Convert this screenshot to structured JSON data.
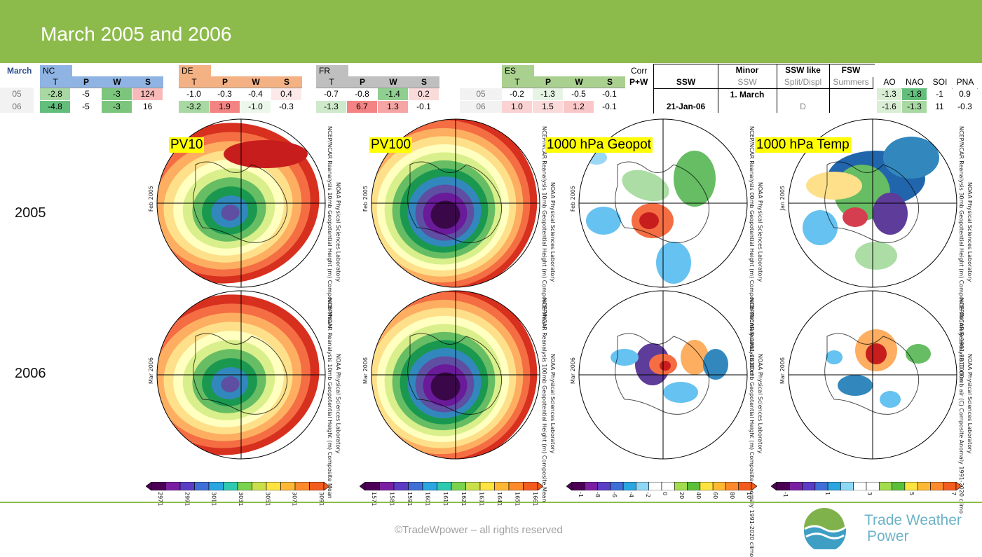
{
  "header": {
    "title": "March 2005 and 2006"
  },
  "tables": {
    "month_label": "March",
    "groups": [
      {
        "name": "NC",
        "head_color": "#8fb4e3",
        "sub": [
          "T",
          "P",
          "W",
          "S"
        ],
        "rows": [
          [
            "-2.8",
            "-5",
            "-3",
            "124"
          ],
          [
            "-4.8",
            "-5",
            "-3",
            "16"
          ]
        ],
        "colors": [
          [
            "#a9d9a3",
            "#ffffff",
            "#7cc57c",
            "#f8b9b9"
          ],
          [
            "#63be7b",
            "#ffffff",
            "#7cc57c",
            "#ffffff"
          ]
        ]
      },
      {
        "name": "DE",
        "head_color": "#f4b183",
        "sub": [
          "T",
          "P",
          "W",
          "S"
        ],
        "rows": [
          [
            "-1.0",
            "-0.3",
            "-0.4",
            "0.4"
          ],
          [
            "-3.2",
            "1.9",
            "-1.0",
            "-0.3"
          ]
        ],
        "colors": [
          [
            "#ffffff",
            "#ffffff",
            "#ffffff",
            "#fde9e9"
          ],
          [
            "#a9d9a3",
            "#f48484",
            "#eef7ec",
            "#ffffff"
          ]
        ]
      },
      {
        "name": "FR",
        "head_color": "#bfbfbf",
        "sub": [
          "T",
          "P",
          "W",
          "S"
        ],
        "rows": [
          [
            "-0.7",
            "-0.8",
            "-1.4",
            "0.2"
          ],
          [
            "-1.3",
            "6.7",
            "1.3",
            "-0.1"
          ]
        ],
        "colors": [
          [
            "#ffffff",
            "#ffffff",
            "#8fcf8f",
            "#fbdada"
          ],
          [
            "#cfe9cb",
            "#f48484",
            "#f6a5a5",
            "#ffffff"
          ]
        ]
      },
      {
        "name": "ES",
        "head_color": "#a9d08e",
        "sub": [
          "T",
          "P",
          "W",
          "S"
        ],
        "rows": [
          [
            "-0.2",
            "-1.3",
            "-0.5",
            "-0.1"
          ],
          [
            "1.0",
            "1.5",
            "1.2",
            "-0.1"
          ]
        ],
        "colors": [
          [
            "#ffffff",
            "#e6f4e3",
            "#ffffff",
            "#ffffff"
          ],
          [
            "#fad2d2",
            "#fbdada",
            "#f9c7c7",
            "#ffffff"
          ]
        ]
      }
    ],
    "row_labels": [
      "05",
      "06"
    ],
    "corr": {
      "head": "Corr",
      "sub": "P+W"
    },
    "ssw": {
      "cols": [
        {
          "head": "",
          "sub": "SSW",
          "r1": "",
          "r2": "21-Jan-06"
        },
        {
          "head": "Minor",
          "sub": "SSW",
          "r1": "1. March",
          "r2": ""
        },
        {
          "head": "SSW like",
          "sub": "Split/Displ",
          "r1": "",
          "r2": "D"
        },
        {
          "head": "FSW",
          "sub": "Summers",
          "r1": "",
          "r2": ""
        }
      ]
    },
    "indices": {
      "cols": [
        "AO",
        "NAO",
        "SOI",
        "PNA"
      ],
      "rows": [
        [
          "-1.3",
          "-1.8",
          "-1",
          "0.9"
        ],
        [
          "-1.6",
          "-1.3",
          "11",
          "-0.3"
        ]
      ],
      "colors": [
        [
          "#d9eed5",
          "#63be7b",
          "#ffffff",
          "#ffffff"
        ],
        [
          "#d9eed5",
          "#a9d9a3",
          "#ffffff",
          "#ffffff"
        ]
      ]
    }
  },
  "year_labels": [
    "2005",
    "2006"
  ],
  "map_labels": [
    "PV10",
    "PV100",
    "1000 hPa Geopot",
    "1000 hPa Temp"
  ],
  "map_texts": {
    "m1r": "NCEP/NCAR Reanalysis   10mb Geopotential Height (m) Composite Mean",
    "m1l": "Feb 2005",
    "m2r": "NCEP/NCAR Reanalysis   10mb Geopotential Height (m) Composite Mean",
    "m2l": "Feb 2005",
    "m3r": "NCEP/NCAR Reanalysis   00mb Geopotential Height (m) Composite Anomaly 1981-2010 cli",
    "m3l": "Feb 2005",
    "m4r": "NCEP/NCAR Reanalysis   30mb Geopotential Height (m) Composite Anomaly 1981-2010 clim",
    "m4l": "Jan 2005",
    "m5r": "NCEP/NCAR Reanalysis   10mb Geopotential Height (m) Composite Mean",
    "m5l": "Mar 2006",
    "m6r": "NCEP/NCAR Reanalysis   100mb Geopotential Height (m) Composite Mean",
    "m6l": "Mar 2006",
    "m7r": "NCEP/NCAR Reanalysis   00mb Geopotential Height (m) Composite Anomaly 1991-2020 climo",
    "m7l": "Mar 2006",
    "m8r": "NCEP/NCAR Reanalysis   1000mb air (C) Composite Anomaly 1991-2020 climo",
    "m8l": "Mar 2006",
    "lab": "NOAA Physical Sciences Laboratory"
  },
  "colorbars": [
    {
      "ticks": [
        "2971",
        "2991",
        "3011",
        "3031",
        "3051",
        "3071",
        "3091"
      ]
    },
    {
      "ticks": [
        "1571",
        "1581",
        "1591",
        "1601",
        "1611",
        "1621",
        "1631",
        "1641",
        "1651",
        "1661"
      ]
    },
    {
      "ticks": [
        "-1",
        "-8",
        "-6",
        "-4",
        "-2",
        "0",
        "20",
        "40",
        "60",
        "80",
        "10"
      ]
    },
    {
      "ticks": [
        "-1",
        "1",
        "3",
        "5",
        "7"
      ]
    }
  ],
  "footer": {
    "copyright": "©TradeWpower – all rights reserved",
    "brand_line1": "Trade Weather",
    "brand_line2": "Power"
  },
  "colors": {
    "accent": "#8dbb4b",
    "brand_blue": "#6db3c8"
  }
}
